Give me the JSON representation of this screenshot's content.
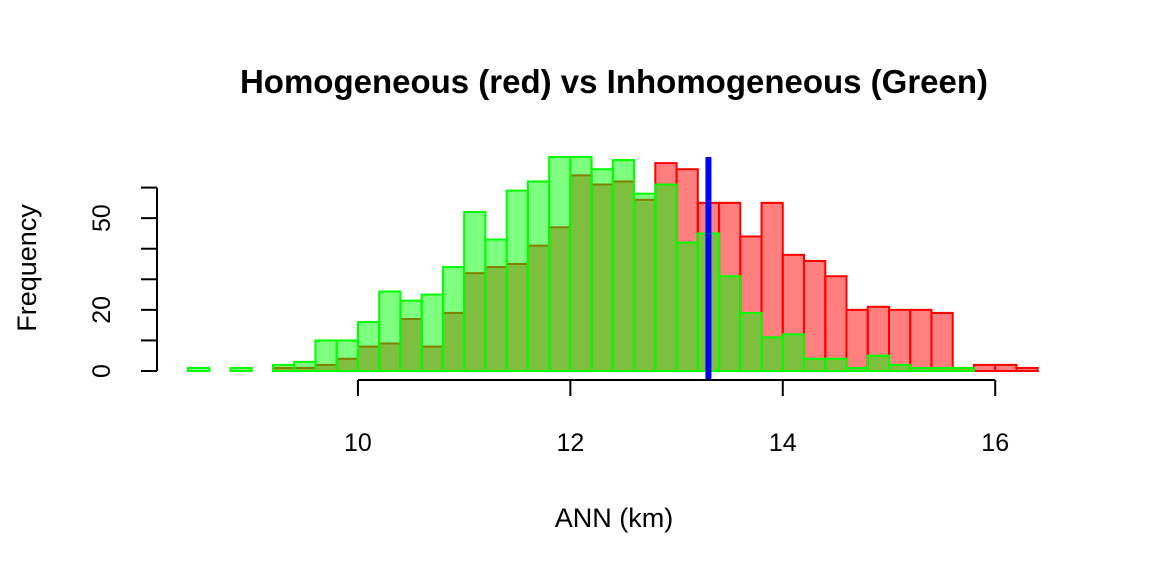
{
  "chart_data": {
    "type": "bar",
    "title": "Homogeneous (red) vs Inhomogeneous (Green)",
    "xlabel": "ANN (km)",
    "ylabel": "Frequency",
    "xlim": [
      8.4,
      16.45
    ],
    "ylim": [
      0,
      70
    ],
    "x_ticks": [
      "10",
      "12",
      "14",
      "16"
    ],
    "y_ticks": [
      "0",
      "20",
      "50"
    ],
    "bin_width": 0.2,
    "vline": {
      "x": 13.3,
      "color": "#0000ff"
    },
    "colors": {
      "red_fill": "rgba(255,0,0,0.5)",
      "red_border": "#ff0000",
      "green_fill": "rgba(0,255,0,0.5)",
      "green_border": "#00ff00"
    },
    "series": [
      {
        "name": "Homogeneous (red)",
        "bin_starts": [
          9.2,
          9.4,
          9.6,
          9.8,
          10.0,
          10.2,
          10.4,
          10.6,
          10.8,
          11.0,
          11.2,
          11.4,
          11.6,
          11.8,
          12.0,
          12.2,
          12.4,
          12.6,
          12.8,
          13.0,
          13.2,
          13.4,
          13.6,
          13.8,
          14.0,
          14.2,
          14.4,
          14.6,
          14.8,
          15.0,
          15.2,
          15.4,
          15.6,
          15.8,
          16.0,
          16.2
        ],
        "values": [
          1,
          1,
          2,
          4,
          8,
          9,
          17,
          8,
          19,
          32,
          34,
          35,
          41,
          47,
          64,
          61,
          62,
          56,
          68,
          66,
          55,
          55,
          44,
          55,
          38,
          36,
          31,
          20,
          21,
          20,
          20,
          19,
          1,
          2,
          2,
          1
        ]
      },
      {
        "name": "Inhomogeneous (Green)",
        "bin_starts": [
          8.4,
          8.6,
          8.8,
          9.0,
          9.2,
          9.4,
          9.6,
          9.8,
          10.0,
          10.2,
          10.4,
          10.6,
          10.8,
          11.0,
          11.2,
          11.4,
          11.6,
          11.8,
          12.0,
          12.2,
          12.4,
          12.6,
          12.8,
          13.0,
          13.2,
          13.4,
          13.6,
          13.8,
          14.0,
          14.2,
          14.4,
          14.6,
          14.8,
          15.0,
          15.2,
          15.4,
          15.6
        ],
        "values": [
          1,
          0,
          1,
          0,
          2,
          3,
          10,
          10,
          16,
          26,
          23,
          25,
          34,
          52,
          43,
          59,
          62,
          71,
          71,
          66,
          69,
          58,
          61,
          42,
          45,
          31,
          19,
          11,
          12,
          4,
          4,
          1,
          5,
          2,
          1,
          1,
          1
        ]
      }
    ]
  }
}
